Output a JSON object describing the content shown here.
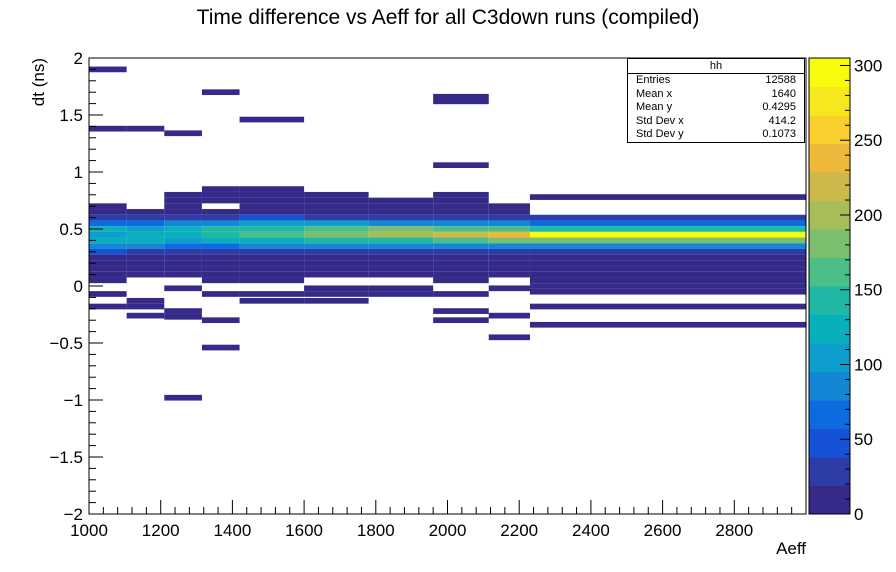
{
  "title": "Time difference vs Aeff for all C3down runs (compiled)",
  "stats_box": {
    "title": "hh",
    "rows": [
      {
        "label": "Entries",
        "value": "12588"
      },
      {
        "label": "Mean x",
        "value": "1640"
      },
      {
        "label": "Mean y",
        "value": "0.4295"
      },
      {
        "label": "Std Dev x",
        "value": "414.2"
      },
      {
        "label": "Std Dev y",
        "value": "0.1073"
      }
    ]
  },
  "chart_data": {
    "type": "heatmap",
    "title": "Time difference vs Aeff for all C3down runs (compiled)",
    "xlabel": "Aeff",
    "ylabel": "dt (ns)",
    "xlim": [
      1000,
      3000
    ],
    "ylim": [
      -2,
      2
    ],
    "zlim": [
      0,
      305
    ],
    "x_ticks": [
      1000,
      1200,
      1400,
      1600,
      1800,
      2000,
      2200,
      2400,
      2600,
      2800
    ],
    "y_ticks": [
      -2,
      -1.5,
      -1,
      -0.5,
      0,
      0.5,
      1,
      1.5,
      2
    ],
    "y_tick_labels": [
      "-2",
      "-1.5",
      "-1",
      "-0.5",
      "0",
      "0.5",
      "1",
      "1.5",
      "2"
    ],
    "colorbar_ticks": [
      0,
      50,
      100,
      150,
      200,
      250,
      300
    ],
    "x_bin_edges": [
      1000,
      1105,
      1210,
      1315,
      1420,
      1600,
      1780,
      1960,
      2115,
      2230,
      3000
    ],
    "y_bin_width": 0.05,
    "bins": [
      {
        "x": 0,
        "y": 1.9,
        "v": 1
      },
      {
        "x": 0,
        "y": 1.38,
        "v": 1
      },
      {
        "x": 0,
        "y": 0.7,
        "v": 3
      },
      {
        "x": 0,
        "y": 0.65,
        "v": 8
      },
      {
        "x": 0,
        "y": 0.6,
        "v": 25
      },
      {
        "x": 0,
        "y": 0.55,
        "v": 70
      },
      {
        "x": 0,
        "y": 0.5,
        "v": 120
      },
      {
        "x": 0,
        "y": 0.45,
        "v": 100
      },
      {
        "x": 0,
        "y": 0.4,
        "v": 120
      },
      {
        "x": 0,
        "y": 0.35,
        "v": 90
      },
      {
        "x": 0,
        "y": 0.3,
        "v": 40
      },
      {
        "x": 0,
        "y": 0.25,
        "v": 15
      },
      {
        "x": 0,
        "y": 0.2,
        "v": 5
      },
      {
        "x": 0,
        "y": 0.15,
        "v": 3
      },
      {
        "x": 0,
        "y": 0.1,
        "v": 2
      },
      {
        "x": 0,
        "y": 0.05,
        "v": 1
      },
      {
        "x": 0,
        "y": -0.07,
        "v": 1
      },
      {
        "x": 0,
        "y": -0.18,
        "v": 1
      },
      {
        "x": 1,
        "y": 1.38,
        "v": 1
      },
      {
        "x": 1,
        "y": 0.65,
        "v": 5
      },
      {
        "x": 1,
        "y": 0.6,
        "v": 20
      },
      {
        "x": 1,
        "y": 0.55,
        "v": 60
      },
      {
        "x": 1,
        "y": 0.5,
        "v": 110
      },
      {
        "x": 1,
        "y": 0.45,
        "v": 115
      },
      {
        "x": 1,
        "y": 0.4,
        "v": 125
      },
      {
        "x": 1,
        "y": 0.35,
        "v": 80
      },
      {
        "x": 1,
        "y": 0.3,
        "v": 30
      },
      {
        "x": 1,
        "y": 0.25,
        "v": 12
      },
      {
        "x": 1,
        "y": 0.2,
        "v": 4
      },
      {
        "x": 1,
        "y": 0.15,
        "v": 2
      },
      {
        "x": 1,
        "y": 0.1,
        "v": 1
      },
      {
        "x": 1,
        "y": -0.13,
        "v": 1
      },
      {
        "x": 1,
        "y": -0.18,
        "v": 1
      },
      {
        "x": 1,
        "y": -0.26,
        "v": 1
      },
      {
        "x": 2,
        "y": 1.34,
        "v": 1
      },
      {
        "x": 2,
        "y": 0.8,
        "v": 2
      },
      {
        "x": 2,
        "y": 0.75,
        "v": 3
      },
      {
        "x": 2,
        "y": 0.7,
        "v": 5
      },
      {
        "x": 2,
        "y": 0.65,
        "v": 10
      },
      {
        "x": 2,
        "y": 0.6,
        "v": 30
      },
      {
        "x": 2,
        "y": 0.55,
        "v": 80
      },
      {
        "x": 2,
        "y": 0.5,
        "v": 125
      },
      {
        "x": 2,
        "y": 0.45,
        "v": 130
      },
      {
        "x": 2,
        "y": 0.4,
        "v": 110
      },
      {
        "x": 2,
        "y": 0.35,
        "v": 70
      },
      {
        "x": 2,
        "y": 0.3,
        "v": 30
      },
      {
        "x": 2,
        "y": 0.25,
        "v": 10
      },
      {
        "x": 2,
        "y": 0.2,
        "v": 4
      },
      {
        "x": 2,
        "y": 0.15,
        "v": 2
      },
      {
        "x": 2,
        "y": 0.1,
        "v": 1
      },
      {
        "x": 2,
        "y": -0.02,
        "v": 1
      },
      {
        "x": 2,
        "y": -0.22,
        "v": 1
      },
      {
        "x": 2,
        "y": -0.27,
        "v": 1
      },
      {
        "x": 2,
        "y": -0.98,
        "v": 1
      },
      {
        "x": 3,
        "y": 1.7,
        "v": 1
      },
      {
        "x": 3,
        "y": 0.85,
        "v": 2
      },
      {
        "x": 3,
        "y": 0.8,
        "v": 3
      },
      {
        "x": 3,
        "y": 0.75,
        "v": 4
      },
      {
        "x": 3,
        "y": 0.65,
        "v": 10
      },
      {
        "x": 3,
        "y": 0.6,
        "v": 35
      },
      {
        "x": 3,
        "y": 0.55,
        "v": 90
      },
      {
        "x": 3,
        "y": 0.5,
        "v": 135
      },
      {
        "x": 3,
        "y": 0.45,
        "v": 140
      },
      {
        "x": 3,
        "y": 0.4,
        "v": 120
      },
      {
        "x": 3,
        "y": 0.35,
        "v": 75
      },
      {
        "x": 3,
        "y": 0.3,
        "v": 30
      },
      {
        "x": 3,
        "y": 0.25,
        "v": 12
      },
      {
        "x": 3,
        "y": 0.2,
        "v": 5
      },
      {
        "x": 3,
        "y": 0.15,
        "v": 3
      },
      {
        "x": 3,
        "y": 0.1,
        "v": 2
      },
      {
        "x": 3,
        "y": 0.05,
        "v": 1
      },
      {
        "x": 3,
        "y": -0.07,
        "v": 1
      },
      {
        "x": 3,
        "y": -0.3,
        "v": 1
      },
      {
        "x": 3,
        "y": -0.54,
        "v": 1
      },
      {
        "x": 4,
        "y": 1.46,
        "v": 1
      },
      {
        "x": 4,
        "y": 0.85,
        "v": 2
      },
      {
        "x": 4,
        "y": 0.8,
        "v": 2
      },
      {
        "x": 4,
        "y": 0.75,
        "v": 3
      },
      {
        "x": 4,
        "y": 0.7,
        "v": 5
      },
      {
        "x": 4,
        "y": 0.65,
        "v": 12
      },
      {
        "x": 4,
        "y": 0.6,
        "v": 40
      },
      {
        "x": 4,
        "y": 0.55,
        "v": 100
      },
      {
        "x": 4,
        "y": 0.5,
        "v": 150
      },
      {
        "x": 4,
        "y": 0.45,
        "v": 160
      },
      {
        "x": 4,
        "y": 0.4,
        "v": 130
      },
      {
        "x": 4,
        "y": 0.35,
        "v": 80
      },
      {
        "x": 4,
        "y": 0.3,
        "v": 35
      },
      {
        "x": 4,
        "y": 0.25,
        "v": 12
      },
      {
        "x": 4,
        "y": 0.2,
        "v": 5
      },
      {
        "x": 4,
        "y": 0.15,
        "v": 3
      },
      {
        "x": 4,
        "y": 0.1,
        "v": 2
      },
      {
        "x": 4,
        "y": 0.05,
        "v": 1
      },
      {
        "x": 4,
        "y": -0.07,
        "v": 1
      },
      {
        "x": 4,
        "y": -0.13,
        "v": 1
      },
      {
        "x": 5,
        "y": 0.8,
        "v": 2
      },
      {
        "x": 5,
        "y": 0.75,
        "v": 3
      },
      {
        "x": 5,
        "y": 0.7,
        "v": 5
      },
      {
        "x": 5,
        "y": 0.65,
        "v": 10
      },
      {
        "x": 5,
        "y": 0.6,
        "v": 35
      },
      {
        "x": 5,
        "y": 0.55,
        "v": 100
      },
      {
        "x": 5,
        "y": 0.5,
        "v": 165
      },
      {
        "x": 5,
        "y": 0.45,
        "v": 185
      },
      {
        "x": 5,
        "y": 0.4,
        "v": 140
      },
      {
        "x": 5,
        "y": 0.35,
        "v": 85
      },
      {
        "x": 5,
        "y": 0.3,
        "v": 35
      },
      {
        "x": 5,
        "y": 0.25,
        "v": 12
      },
      {
        "x": 5,
        "y": 0.2,
        "v": 5
      },
      {
        "x": 5,
        "y": 0.15,
        "v": 3
      },
      {
        "x": 5,
        "y": 0.1,
        "v": 2
      },
      {
        "x": 5,
        "y": -0.02,
        "v": 1
      },
      {
        "x": 5,
        "y": -0.07,
        "v": 1
      },
      {
        "x": 5,
        "y": -0.13,
        "v": 1
      },
      {
        "x": 6,
        "y": 0.75,
        "v": 2
      },
      {
        "x": 6,
        "y": 0.7,
        "v": 3
      },
      {
        "x": 6,
        "y": 0.65,
        "v": 8
      },
      {
        "x": 6,
        "y": 0.6,
        "v": 30
      },
      {
        "x": 6,
        "y": 0.55,
        "v": 95
      },
      {
        "x": 6,
        "y": 0.5,
        "v": 175
      },
      {
        "x": 6,
        "y": 0.45,
        "v": 195
      },
      {
        "x": 6,
        "y": 0.4,
        "v": 150
      },
      {
        "x": 6,
        "y": 0.35,
        "v": 85
      },
      {
        "x": 6,
        "y": 0.3,
        "v": 30
      },
      {
        "x": 6,
        "y": 0.25,
        "v": 10
      },
      {
        "x": 6,
        "y": 0.2,
        "v": 4
      },
      {
        "x": 6,
        "y": 0.15,
        "v": 2
      },
      {
        "x": 6,
        "y": 0.1,
        "v": 1
      },
      {
        "x": 6,
        "y": -0.02,
        "v": 1
      },
      {
        "x": 6,
        "y": -0.07,
        "v": 1
      },
      {
        "x": 7,
        "y": 1.66,
        "v": 1
      },
      {
        "x": 7,
        "y": 1.62,
        "v": 1
      },
      {
        "x": 7,
        "y": 1.06,
        "v": 1
      },
      {
        "x": 7,
        "y": 0.8,
        "v": 2
      },
      {
        "x": 7,
        "y": 0.75,
        "v": 3
      },
      {
        "x": 7,
        "y": 0.7,
        "v": 4
      },
      {
        "x": 7,
        "y": 0.65,
        "v": 8
      },
      {
        "x": 7,
        "y": 0.6,
        "v": 30
      },
      {
        "x": 7,
        "y": 0.55,
        "v": 90
      },
      {
        "x": 7,
        "y": 0.5,
        "v": 160
      },
      {
        "x": 7,
        "y": 0.45,
        "v": 215
      },
      {
        "x": 7,
        "y": 0.4,
        "v": 165
      },
      {
        "x": 7,
        "y": 0.35,
        "v": 90
      },
      {
        "x": 7,
        "y": 0.3,
        "v": 35
      },
      {
        "x": 7,
        "y": 0.25,
        "v": 12
      },
      {
        "x": 7,
        "y": 0.2,
        "v": 4
      },
      {
        "x": 7,
        "y": 0.15,
        "v": 2
      },
      {
        "x": 7,
        "y": 0.1,
        "v": 1
      },
      {
        "x": 7,
        "y": 0.05,
        "v": 1
      },
      {
        "x": 7,
        "y": -0.07,
        "v": 1
      },
      {
        "x": 7,
        "y": -0.22,
        "v": 1
      },
      {
        "x": 7,
        "y": -0.3,
        "v": 1
      },
      {
        "x": 8,
        "y": 0.7,
        "v": 2
      },
      {
        "x": 8,
        "y": 0.65,
        "v": 5
      },
      {
        "x": 8,
        "y": 0.6,
        "v": 25
      },
      {
        "x": 8,
        "y": 0.55,
        "v": 85
      },
      {
        "x": 8,
        "y": 0.5,
        "v": 160
      },
      {
        "x": 8,
        "y": 0.45,
        "v": 240
      },
      {
        "x": 8,
        "y": 0.4,
        "v": 175
      },
      {
        "x": 8,
        "y": 0.35,
        "v": 90
      },
      {
        "x": 8,
        "y": 0.3,
        "v": 35
      },
      {
        "x": 8,
        "y": 0.25,
        "v": 12
      },
      {
        "x": 8,
        "y": 0.2,
        "v": 4
      },
      {
        "x": 8,
        "y": 0.15,
        "v": 2
      },
      {
        "x": 8,
        "y": 0.1,
        "v": 1
      },
      {
        "x": 8,
        "y": -0.02,
        "v": 1
      },
      {
        "x": 8,
        "y": -0.26,
        "v": 1
      },
      {
        "x": 8,
        "y": -0.45,
        "v": 1
      },
      {
        "x": 9,
        "y": 0.78,
        "v": 1
      },
      {
        "x": 9,
        "y": 0.6,
        "v": 20
      },
      {
        "x": 9,
        "y": 0.55,
        "v": 75
      },
      {
        "x": 9,
        "y": 0.5,
        "v": 150
      },
      {
        "x": 9,
        "y": 0.45,
        "v": 300
      },
      {
        "x": 9,
        "y": 0.4,
        "v": 185
      },
      {
        "x": 9,
        "y": 0.35,
        "v": 90
      },
      {
        "x": 9,
        "y": 0.3,
        "v": 35
      },
      {
        "x": 9,
        "y": 0.25,
        "v": 12
      },
      {
        "x": 9,
        "y": 0.2,
        "v": 5
      },
      {
        "x": 9,
        "y": 0.15,
        "v": 2
      },
      {
        "x": 9,
        "y": 0.1,
        "v": 1
      },
      {
        "x": 9,
        "y": 0.05,
        "v": 1
      },
      {
        "x": 9,
        "y": 0.0,
        "v": 1
      },
      {
        "x": 9,
        "y": -0.05,
        "v": 1
      },
      {
        "x": 9,
        "y": -0.18,
        "v": 1
      },
      {
        "x": 9,
        "y": -0.34,
        "v": 1
      }
    ]
  },
  "palette": {
    "stops": [
      "#352a87",
      "#2e3ca8",
      "#1552d6",
      "#0d6be0",
      "#1387d5",
      "#0e9ecd",
      "#08afbd",
      "#1eb8a5",
      "#4cbe88",
      "#7bbf6e",
      "#a6bd5a",
      "#cdb949",
      "#eeb93a",
      "#fbcf2e",
      "#f6e81c",
      "#f9fb0e"
    ],
    "empty": "#ffffff"
  }
}
